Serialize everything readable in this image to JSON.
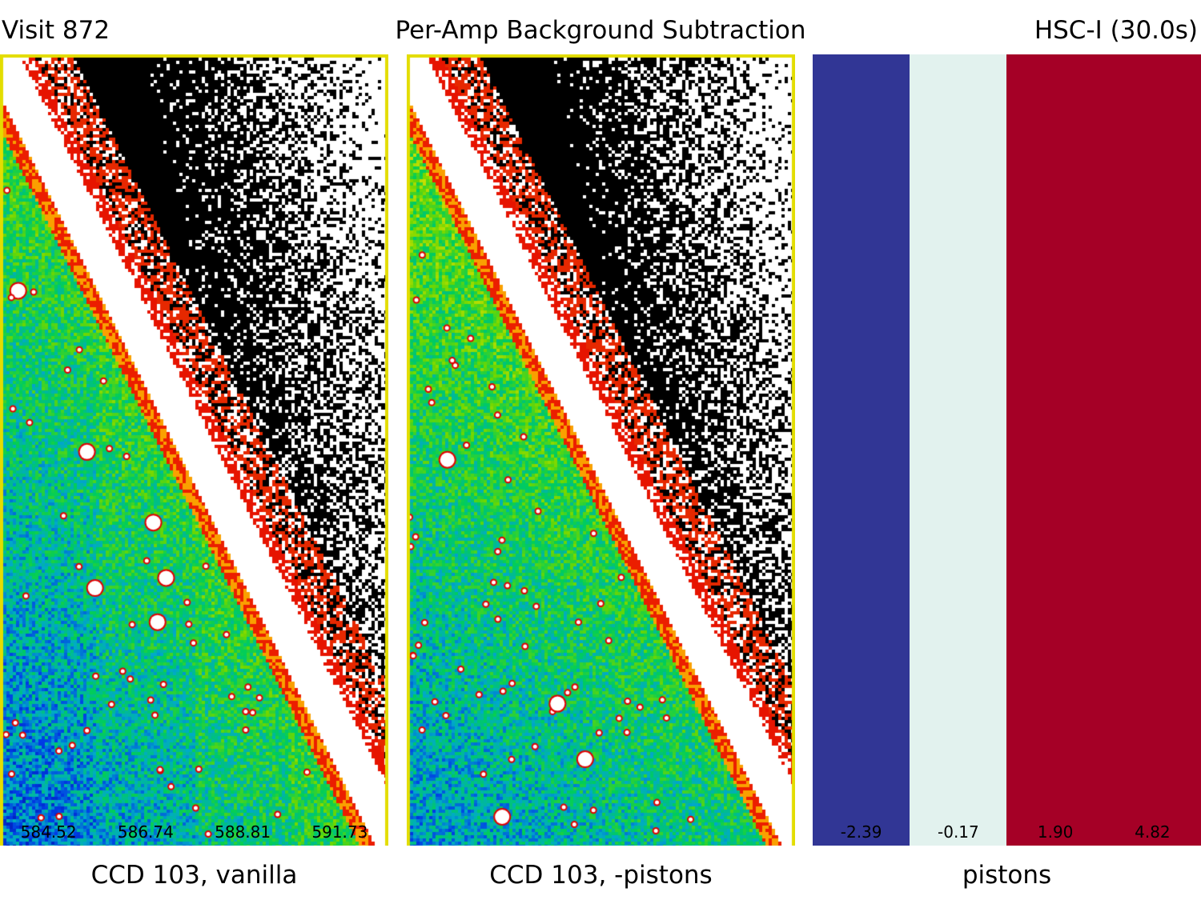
{
  "header": {
    "visit": "Visit 872",
    "title": "Per-Amp Background Subtraction",
    "band": "HSC-I (30.0s)"
  },
  "panels": {
    "vanilla": {
      "caption": "CCD 103, vanilla",
      "amp_values": [
        "584.52",
        "586.74",
        "588.81",
        "591.73"
      ]
    },
    "pistons_subtracted": {
      "caption": "CCD 103, -pistons"
    },
    "pistons": {
      "caption": "pistons",
      "amp_values": [
        "-2.39",
        "-0.17",
        "1.90",
        "4.82"
      ],
      "amp_colors": [
        "#313695",
        "#e2f2ee",
        "#a50026",
        "#a50026"
      ]
    }
  },
  "colors": {
    "border_yellow": "#e3dd00",
    "border_green": "#66dd00",
    "streak_white": "#ffffff",
    "sky_black": "#000000"
  }
}
